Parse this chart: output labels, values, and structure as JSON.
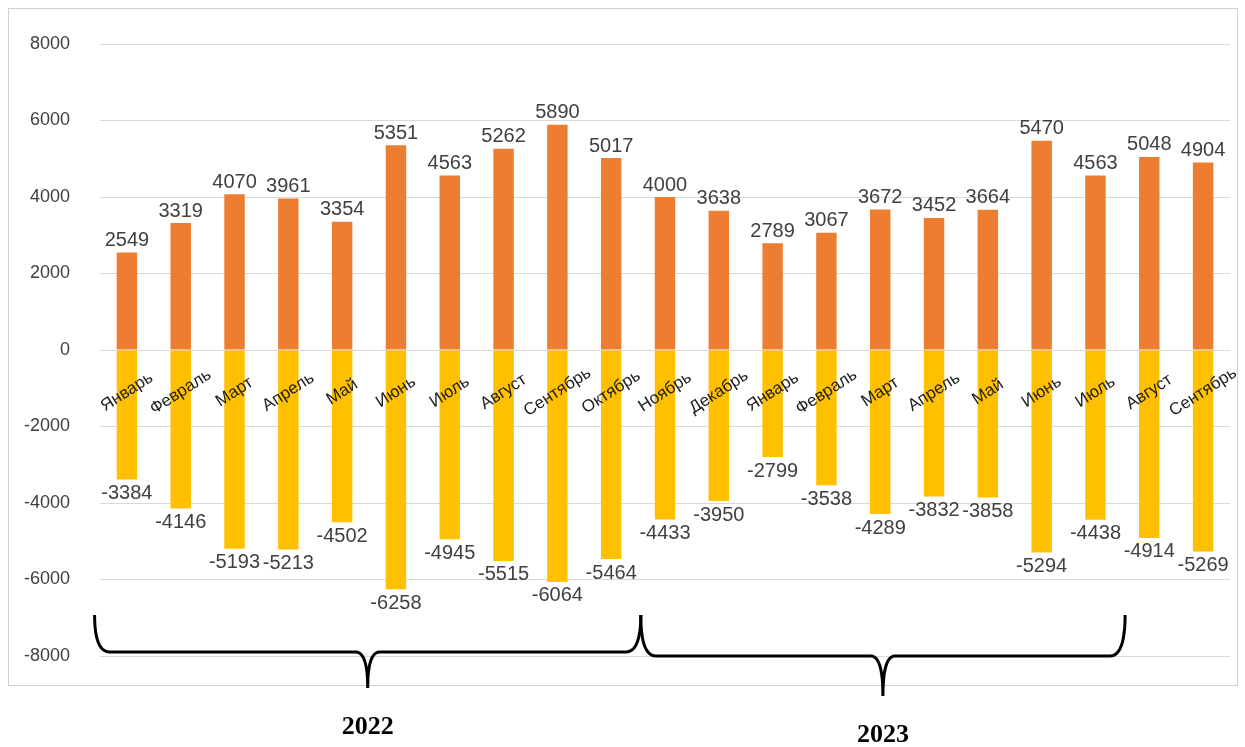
{
  "chart_data": {
    "type": "bar",
    "stacked": true,
    "categories": [
      "Январь",
      "Февраль",
      "Март",
      "Апрель",
      "Май",
      "Июнь",
      "Июль",
      "Август",
      "Сентябрь",
      "Октябрь",
      "Ноябрь",
      "Декабрь",
      "Январь",
      "Февраль",
      "Март",
      "Апрель",
      "Май",
      "Июнь",
      "Июль",
      "Август",
      "Сентябрь"
    ],
    "series": [
      {
        "color": "#ed7d31",
        "values": [
          2549,
          3319,
          4070,
          3961,
          3354,
          5351,
          4563,
          5262,
          5890,
          5017,
          4000,
          3638,
          2789,
          3067,
          3672,
          3452,
          3664,
          5470,
          4563,
          5048,
          4904
        ]
      },
      {
        "color": "#ffc000",
        "values": [
          -3384,
          -4146,
          -5193,
          -5213,
          -4502,
          -6258,
          -4945,
          -5515,
          -6064,
          -5464,
          -4433,
          -3950,
          -2799,
          -3538,
          -4289,
          -3832,
          -3858,
          -5294,
          -4438,
          -4914,
          -5269
        ]
      }
    ],
    "ylim": [
      -8000,
      8000
    ],
    "yticks": [
      -8000,
      -6000,
      -4000,
      -2000,
      0,
      2000,
      4000,
      6000,
      8000
    ],
    "grid": "y",
    "legend": false,
    "data_labels": true,
    "annotations": [
      "2022",
      "2023"
    ]
  }
}
